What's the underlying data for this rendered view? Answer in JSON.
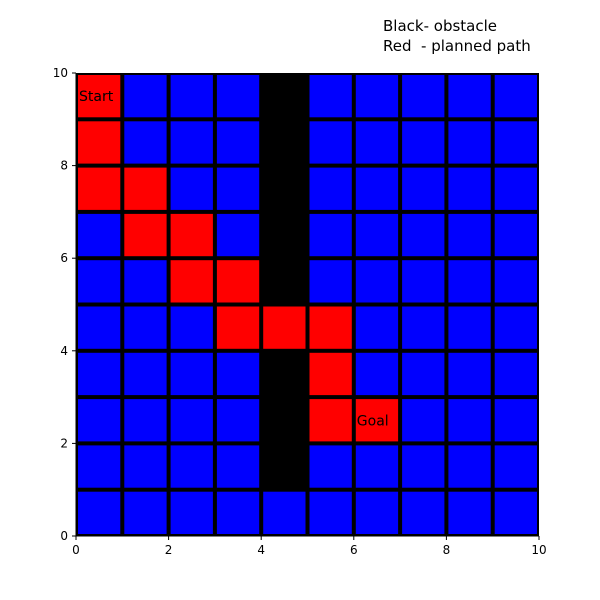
{
  "legend": {
    "obstacle": "Black- obstacle",
    "path": "Red  - planned path"
  },
  "colors": {
    "free": "#0000ff",
    "obstacle": "#000000",
    "path": "#ff0000",
    "grid": "#000000"
  },
  "chart_data": {
    "type": "heatmap",
    "xlim": [
      0,
      10
    ],
    "ylim": [
      0,
      10
    ],
    "x_ticks": [
      0,
      2,
      4,
      6,
      8,
      10
    ],
    "y_ticks": [
      0,
      2,
      4,
      6,
      8,
      10
    ],
    "grid": true,
    "obstacle_cells": [
      [
        4,
        1
      ],
      [
        4,
        2
      ],
      [
        4,
        3
      ],
      [
        4,
        5
      ],
      [
        4,
        6
      ],
      [
        4,
        7
      ],
      [
        4,
        8
      ],
      [
        4,
        9
      ]
    ],
    "path_cells": [
      [
        0,
        9
      ],
      [
        0,
        8
      ],
      [
        0,
        7
      ],
      [
        1,
        7
      ],
      [
        1,
        6
      ],
      [
        2,
        6
      ],
      [
        2,
        5
      ],
      [
        3,
        5
      ],
      [
        3,
        4
      ],
      [
        4,
        4
      ],
      [
        5,
        4
      ],
      [
        5,
        3
      ],
      [
        5,
        2
      ],
      [
        6,
        2
      ]
    ],
    "annotations": [
      {
        "text": "Start",
        "x": 0,
        "y": 9
      },
      {
        "text": "Goal",
        "x": 6,
        "y": 2
      }
    ]
  }
}
